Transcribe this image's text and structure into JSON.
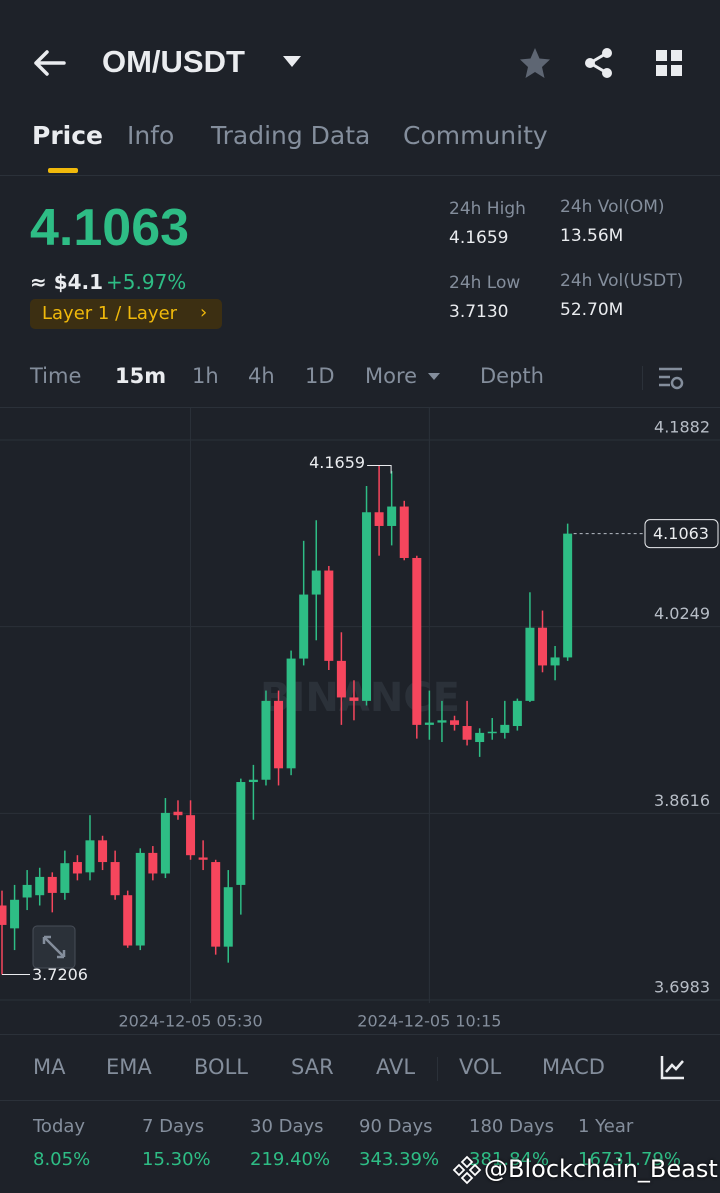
{
  "header": {
    "pair": "OM/USDT"
  },
  "tabs": [
    "Price",
    "Info",
    "Trading Data",
    "Community"
  ],
  "price": {
    "last": "4.1063",
    "usd": "≈ $4.1",
    "change": "+5.97%",
    "tag": "Layer 1 / Layer"
  },
  "stats": [
    {
      "label": "24h High",
      "value": "4.1659"
    },
    {
      "label": "24h Vol(OM)",
      "value": "13.56M"
    },
    {
      "label": "24h Low",
      "value": "3.7130"
    },
    {
      "label": "24h Vol(USDT)",
      "value": "52.70M"
    }
  ],
  "intervals": [
    "Time",
    "15m",
    "1h",
    "4h",
    "1D",
    "More",
    "Depth"
  ],
  "chart_data": {
    "type": "candlestick",
    "watermark": "BINANCE",
    "up_color": "#2ebd85",
    "down_color": "#f6465d",
    "categories": [
      null,
      null,
      null,
      null,
      null,
      null,
      null,
      null,
      null,
      null,
      null,
      null,
      null,
      null,
      null,
      "2024-12-05 05:30",
      null,
      null,
      null,
      null,
      null,
      null,
      null,
      null,
      null,
      null,
      null,
      null,
      null,
      null,
      null,
      null,
      null,
      null,
      "2024-12-05 10:15",
      null,
      null,
      null,
      null,
      null,
      null,
      null,
      null,
      null,
      null,
      null
    ],
    "open": [
      3.781,
      3.761,
      3.788,
      3.79,
      3.806,
      3.792,
      3.819,
      3.81,
      3.838,
      3.819,
      3.79,
      3.746,
      3.827,
      3.809,
      3.863,
      3.86,
      3.823,
      3.819,
      3.745,
      3.799,
      3.889,
      3.891,
      3.96,
      3.901,
      3.997,
      4.053,
      4.074,
      3.995,
      3.963,
      3.96,
      4.125,
      4.113,
      4.13,
      4.085,
      3.939,
      3.941,
      3.943,
      3.938,
      3.924,
      3.932,
      3.932,
      3.938,
      3.96,
      4.024,
      3.991,
      3.998
    ],
    "high": [
      3.794,
      3.799,
      3.812,
      3.814,
      3.81,
      3.829,
      3.825,
      3.86,
      3.842,
      3.829,
      3.794,
      3.831,
      3.833,
      3.875,
      3.873,
      3.873,
      3.838,
      3.821,
      3.812,
      3.892,
      3.904,
      3.969,
      3.969,
      4.004,
      4.1,
      4.118,
      4.078,
      4.02,
      3.978,
      4.148,
      4.1659,
      4.161,
      4.135,
      4.087,
      3.969,
      3.96,
      3.947,
      3.96,
      3.936,
      3.945,
      3.96,
      3.962,
      4.055,
      4.039,
      4.008,
      4.115
    ],
    "low": [
      3.7206,
      3.742,
      3.777,
      3.781,
      3.775,
      3.786,
      3.803,
      3.803,
      3.812,
      3.786,
      3.744,
      3.742,
      3.803,
      3.805,
      3.856,
      3.821,
      3.812,
      3.738,
      3.731,
      3.773,
      3.856,
      3.886,
      3.886,
      3.895,
      3.991,
      4.013,
      3.987,
      3.939,
      3.943,
      3.956,
      4.087,
      4.096,
      4.083,
      3.927,
      3.926,
      3.924,
      3.934,
      3.921,
      3.911,
      3.926,
      3.927,
      3.934,
      3.959,
      3.985,
      3.978,
      3.995
    ],
    "close": [
      3.764,
      3.786,
      3.799,
      3.806,
      3.792,
      3.818,
      3.809,
      3.838,
      3.819,
      3.79,
      3.746,
      3.827,
      3.809,
      3.862,
      3.86,
      3.825,
      3.821,
      3.745,
      3.797,
      3.889,
      3.891,
      3.96,
      3.901,
      3.997,
      4.053,
      4.074,
      3.995,
      3.963,
      3.96,
      4.125,
      4.113,
      4.13,
      4.085,
      3.939,
      3.941,
      3.943,
      3.939,
      3.926,
      3.932,
      3.933,
      3.939,
      3.96,
      4.024,
      3.991,
      3.998,
      4.1063
    ],
    "ylim": [
      3.6957,
      4.2162
    ],
    "yticks": [
      3.6983,
      3.8616,
      4.0249,
      4.1882
    ],
    "grid": true
  },
  "indicators": [
    "MA",
    "EMA",
    "BOLL",
    "SAR",
    "AVL",
    "VOL",
    "MACD"
  ],
  "performance": [
    {
      "label": "Today",
      "value": "8.05%"
    },
    {
      "label": "7 Days",
      "value": "15.30%"
    },
    {
      "label": "30 Days",
      "value": "219.40%"
    },
    {
      "label": "90 Days",
      "value": "343.39%"
    },
    {
      "label": "180 Days",
      "value": "381.84%"
    },
    {
      "label": "1 Year",
      "value": "16731.79%"
    }
  ],
  "watermark": "@Blockchain_Beast"
}
